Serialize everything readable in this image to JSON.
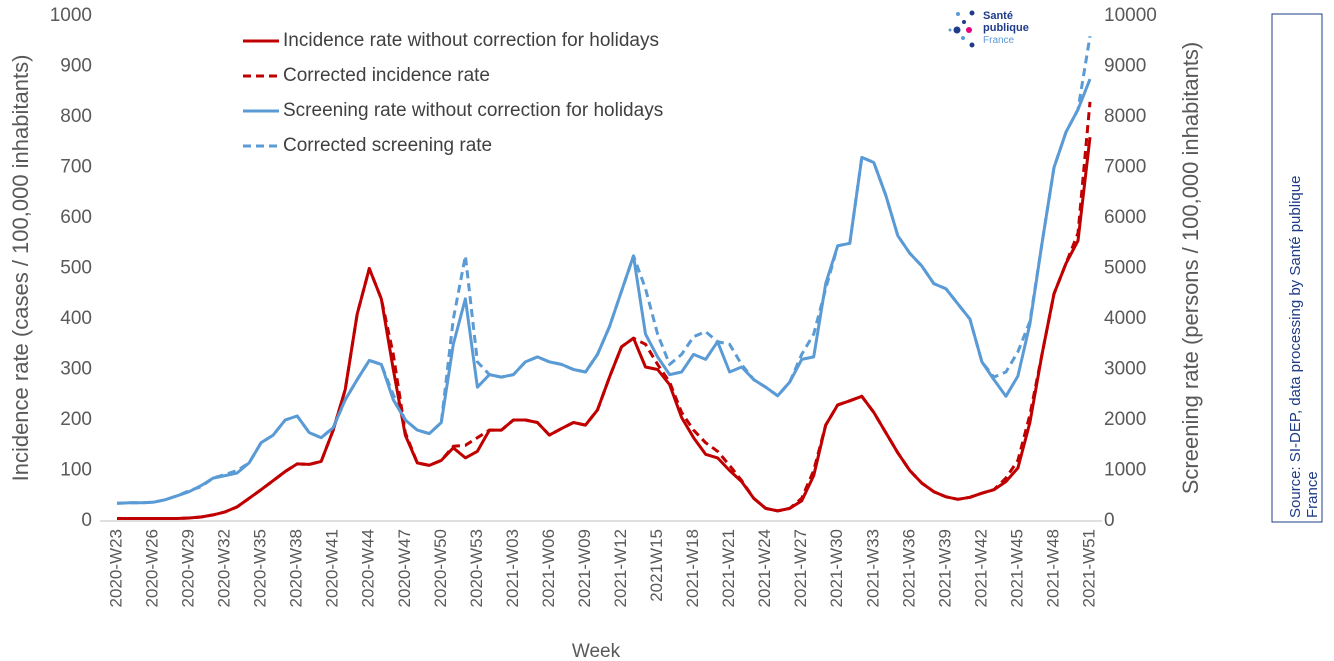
{
  "chart_data": {
    "type": "line",
    "categories": [
      "2020-W23",
      null,
      null,
      "2020-W26",
      null,
      null,
      "2020-W29",
      null,
      null,
      "2020-W32",
      null,
      null,
      "2020-W35",
      null,
      null,
      "2020-W38",
      null,
      null,
      "2020-W41",
      null,
      null,
      "2020-W44",
      null,
      null,
      "2020-W47",
      null,
      null,
      "2020-W50",
      null,
      null,
      "2020-W53",
      null,
      null,
      "2021-W03",
      null,
      null,
      "2021-W06",
      null,
      null,
      "2021-W09",
      null,
      null,
      "2021-W12",
      null,
      null,
      "2021W15",
      null,
      null,
      "2021-W18",
      null,
      null,
      "2021-W21",
      null,
      null,
      "2021-W24",
      null,
      null,
      "2021-W27",
      null,
      null,
      "2021-W30",
      null,
      null,
      "2021-W33",
      null,
      null,
      "2021-W36",
      null,
      null,
      "2021-W39",
      null,
      null,
      "2021-W42",
      null,
      null,
      "2021-W45",
      null,
      null,
      "2021-W48",
      null,
      null,
      "2021-W51"
    ],
    "xlabel": "Week",
    "ylabel": "Incidence rate (cases / 100,000 inhabitants)",
    "y2label": "Screening rate (persons / 100,000 inhabitants)",
    "ylim": [
      0,
      1000
    ],
    "yticks": [
      0,
      100,
      200,
      300,
      400,
      500,
      600,
      700,
      800,
      900,
      1000
    ],
    "y2lim": [
      0,
      10000
    ],
    "y2ticks": [
      0,
      1000,
      2000,
      3000,
      4000,
      5000,
      6000,
      7000,
      8000,
      9000,
      10000
    ],
    "legend": "upper-left",
    "series": [
      {
        "name": "Incidence rate without correction for holidays",
        "color": "#c00000",
        "linestyle": "solid",
        "values": [
          5,
          5,
          5,
          5,
          5,
          5,
          6,
          8,
          12,
          18,
          28,
          45,
          62,
          80,
          98,
          113,
          112,
          118,
          180,
          260,
          410,
          500,
          440,
          300,
          170,
          115,
          110,
          120,
          145,
          125,
          138,
          180,
          180,
          200,
          200,
          195,
          170,
          183,
          195,
          190,
          220,
          285,
          345,
          362,
          305,
          300,
          270,
          205,
          165,
          132,
          125,
          100,
          78,
          45,
          25,
          20,
          25,
          40,
          90,
          190,
          230,
          238,
          247,
          215,
          175,
          135,
          100,
          75,
          58,
          48,
          43,
          47,
          55,
          62,
          78,
          105,
          195,
          330,
          450,
          510,
          555,
          760
        ]
      },
      {
        "name": "Corrected incidence rate",
        "color": "#c00000",
        "linestyle": "dashed",
        "values": [
          5,
          5,
          5,
          5,
          5,
          5,
          6,
          8,
          12,
          18,
          28,
          45,
          62,
          80,
          98,
          113,
          112,
          118,
          180,
          260,
          410,
          500,
          440,
          330,
          175,
          115,
          110,
          120,
          148,
          150,
          165,
          180,
          180,
          200,
          200,
          195,
          170,
          183,
          195,
          190,
          220,
          285,
          345,
          362,
          350,
          310,
          275,
          215,
          180,
          155,
          138,
          110,
          80,
          45,
          25,
          20,
          25,
          45,
          100,
          190,
          230,
          238,
          247,
          215,
          175,
          135,
          100,
          75,
          58,
          48,
          43,
          47,
          55,
          62,
          85,
          120,
          210,
          330,
          450,
          510,
          570,
          830
        ]
      },
      {
        "name": "Screening rate without correction for holidays",
        "color": "#5b9bd5",
        "linestyle": "solid",
        "axis": "y2",
        "values": [
          350,
          360,
          360,
          370,
          420,
          500,
          580,
          700,
          850,
          900,
          950,
          1150,
          1550,
          1700,
          2000,
          2080,
          1750,
          1650,
          1850,
          2400,
          2800,
          3180,
          3100,
          2400,
          2000,
          1800,
          1730,
          1950,
          3500,
          4400,
          2650,
          2900,
          2850,
          2900,
          3150,
          3250,
          3150,
          3100,
          3000,
          2950,
          3300,
          3850,
          4550,
          5250,
          3700,
          3250,
          2900,
          2950,
          3300,
          3200,
          3550,
          2950,
          3050,
          2800,
          2650,
          2480,
          2750,
          3200,
          3250,
          4700,
          5450,
          5500,
          7200,
          7100,
          6450,
          5650,
          5300,
          5050,
          4700,
          4600,
          4300,
          4000,
          3150,
          2800,
          2470,
          2870,
          3900,
          5500,
          7000,
          7700,
          8150,
          8750
        ]
      },
      {
        "name": "Corrected screening rate",
        "color": "#5b9bd5",
        "linestyle": "dashed",
        "axis": "y2",
        "values": [
          350,
          360,
          360,
          370,
          420,
          500,
          600,
          680,
          850,
          920,
          1000,
          1150,
          1550,
          1700,
          2000,
          2080,
          1750,
          1650,
          1850,
          2400,
          2800,
          3180,
          3100,
          2500,
          2000,
          1800,
          1730,
          1950,
          4000,
          5250,
          3150,
          2900,
          2850,
          2900,
          3150,
          3250,
          3150,
          3100,
          3000,
          2950,
          3300,
          3850,
          4550,
          5250,
          4600,
          3700,
          3100,
          3300,
          3650,
          3750,
          3550,
          3500,
          3100,
          2800,
          2650,
          2480,
          2750,
          3300,
          3700,
          4600,
          5450,
          5500,
          7200,
          7100,
          6450,
          5650,
          5300,
          5050,
          4700,
          4600,
          4300,
          4000,
          3150,
          2850,
          2950,
          3350,
          3950,
          5500,
          7000,
          7700,
          8150,
          9600
        ]
      }
    ]
  },
  "logo": {
    "line1": "Santé",
    "line2": "publique",
    "line3": "France"
  },
  "source": {
    "line1": "Source: SI-DEP, data processing by Santé publique",
    "line2": "France"
  }
}
